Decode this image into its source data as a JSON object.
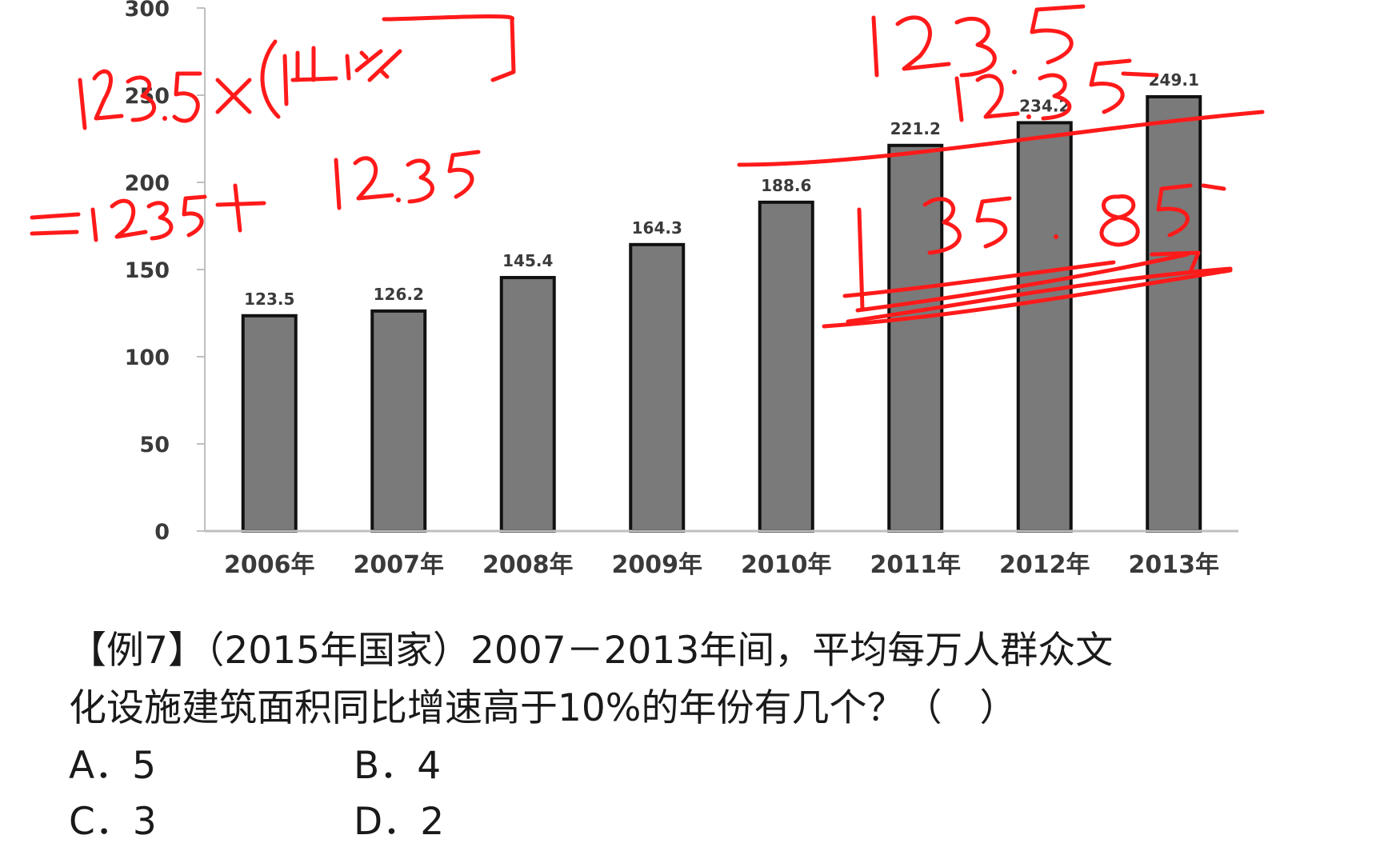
{
  "chart_data": {
    "type": "bar",
    "categories": [
      "2006年",
      "2007年",
      "2008年",
      "2009年",
      "2010年",
      "2011年",
      "2012年",
      "2013年"
    ],
    "values": [
      123.5,
      126.2,
      145.4,
      164.3,
      188.6,
      221.2,
      234.2,
      249.1
    ],
    "data_labels": [
      "123.5",
      "126.2",
      "145.4",
      "164.3",
      "188.6",
      "221.2",
      "234.2",
      "249.1"
    ],
    "yticks": [
      0,
      50,
      100,
      150,
      200,
      250,
      300
    ],
    "ylim": [
      0,
      300
    ],
    "bar_color": "#7a7a7a",
    "grid": false
  },
  "annotations": {
    "ink_color": "#ff1a1a",
    "lines": [
      "123.5×(1+10%)",
      "=123.5 + 12.35",
      "123.5",
      "12.35",
      "35.85"
    ]
  },
  "question": {
    "line1": "【例7】（2015年国家）2007－2013年间，平均每万人群众文",
    "line2": "化设施建筑面积同比增速高于10%的年份有几个？（　）"
  },
  "options": [
    {
      "label": "A．5"
    },
    {
      "label": "B．4"
    },
    {
      "label": "C．3"
    },
    {
      "label": "D．2"
    }
  ]
}
